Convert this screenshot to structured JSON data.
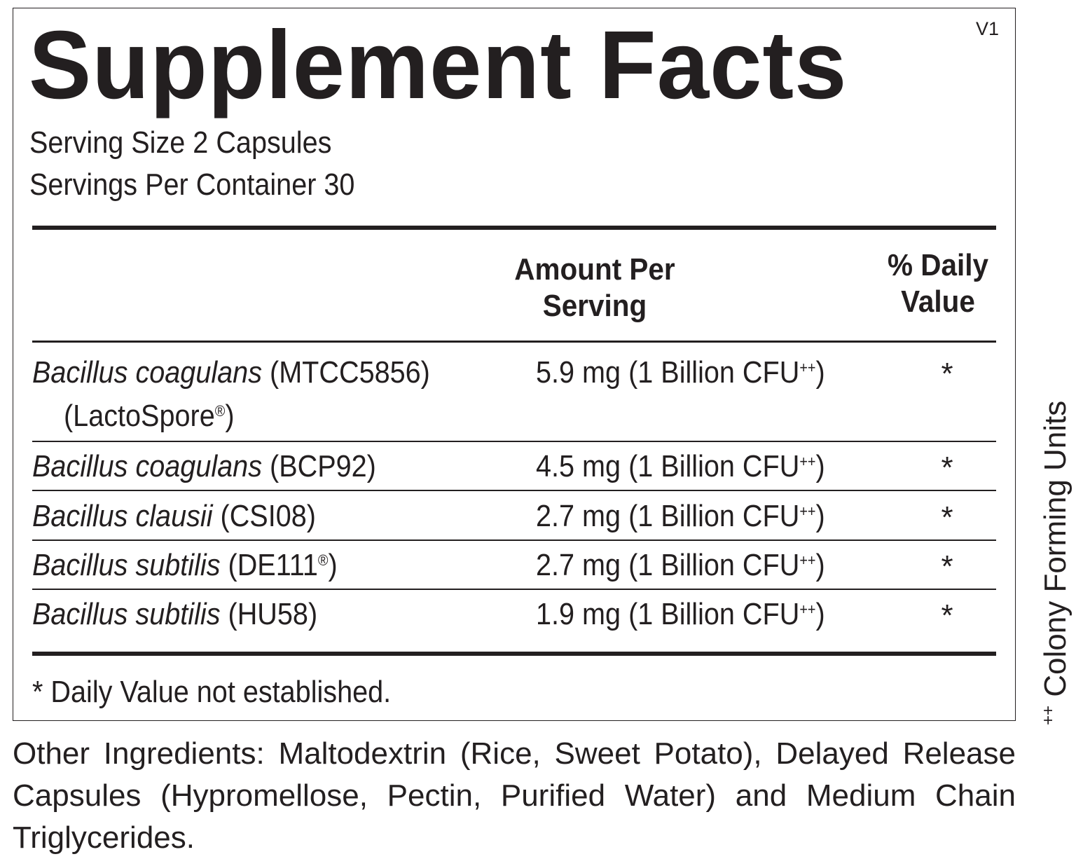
{
  "label": {
    "title": "Supplement Facts",
    "version": "V1",
    "serving_size": "Serving Size 2 Capsules",
    "servings_per_container": "Servings Per Container 30",
    "col_amount": "Amount Per Serving",
    "col_dv_line1": "% Daily",
    "col_dv_line2": "Value",
    "col_amount_line1": "Amount Per",
    "col_amount_line2": "Serving",
    "rows": [
      {
        "species": "Bacillus coagulans",
        "strain": " (MTCC5856)",
        "brand": "(LactoSpore",
        "brand_mark": "®",
        "brand_close": ")",
        "amount": "5.9 mg (1 Billion CFU",
        "cfu_mark": "++",
        "amount_close": ")",
        "dv": "*"
      },
      {
        "species": "Bacillus coagulans",
        "strain": " (BCP92)",
        "amount": "4.5 mg (1 Billion CFU",
        "cfu_mark": "++",
        "amount_close": ")",
        "dv": "*"
      },
      {
        "species": "Bacillus clausii",
        "strain": " (CSI08)",
        "amount": "2.7 mg (1 Billion CFU",
        "cfu_mark": "++",
        "amount_close": ")",
        "dv": "*"
      },
      {
        "species": "Bacillus subtilis",
        "strain": " (DE111",
        "strain_mark": "®",
        "strain_close": ")",
        "amount": "2.7 mg (1 Billion CFU",
        "cfu_mark": "++",
        "amount_close": ")",
        "dv": "*"
      },
      {
        "species": "Bacillus subtilis",
        "strain": " (HU58)",
        "amount": "1.9 mg (1 Billion CFU",
        "cfu_mark": "++",
        "amount_close": ")",
        "dv": "*"
      }
    ],
    "footnote": "* Daily Value not established."
  },
  "other_ingredients": "Other Ingredients: Maltodextrin (Rice, Sweet Potato), Delayed Release Capsules (Hypromellose, Pectin, Purified Water) and Medium Chain Triglycerides.",
  "side_note": {
    "symbol": "++",
    "text": " Colony Forming Units"
  }
}
